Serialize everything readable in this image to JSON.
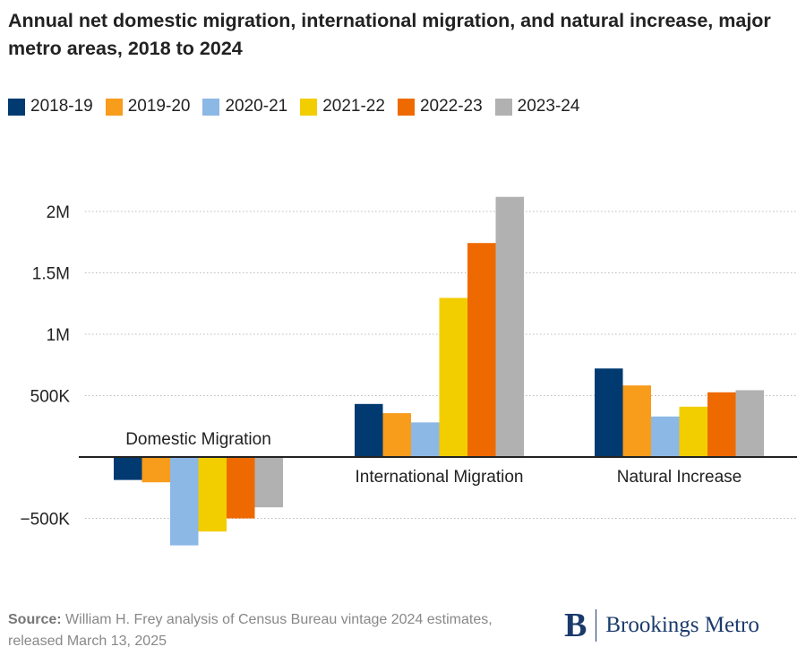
{
  "title": "Annual net domestic migration, international migration, and natural increase, major metro areas, 2018 to 2024",
  "source_label": "Source:",
  "source_text": "William H. Frey analysis of Census Bureau vintage 2024 estimates, released March 13, 2025",
  "logo": {
    "letter": "B",
    "text": "Brookings Metro"
  },
  "chart_data": {
    "type": "bar",
    "title": "Annual net domestic migration, international migration, and natural increase, major metro areas, 2018 to 2024",
    "categories": [
      "Domestic Migration",
      "International Migration",
      "Natural Increase"
    ],
    "series": [
      {
        "name": "2018-19",
        "color": "#003a70",
        "values": [
          -187000,
          432000,
          721000
        ]
      },
      {
        "name": "2019-20",
        "color": "#f89c1c",
        "values": [
          -206000,
          357000,
          583000
        ]
      },
      {
        "name": "2020-21",
        "color": "#8cb8e6",
        "values": [
          -720000,
          282000,
          330000
        ]
      },
      {
        "name": "2021-22",
        "color": "#f2cd00",
        "values": [
          -607000,
          1296000,
          410000
        ]
      },
      {
        "name": "2022-23",
        "color": "#ee6a00",
        "values": [
          -500000,
          1743000,
          527000
        ]
      },
      {
        "name": "2023-24",
        "color": "#b1b1b1",
        "values": [
          -410000,
          2119000,
          544000
        ]
      }
    ],
    "yticks": [
      {
        "v": -500000,
        "label": "−500K"
      },
      {
        "v": 500000,
        "label": "500K"
      },
      {
        "v": 1000000,
        "label": "1M"
      },
      {
        "v": 1500000,
        "label": "1.5M"
      },
      {
        "v": 2000000,
        "label": "2M"
      }
    ],
    "ylim": [
      -750000,
      2200000
    ],
    "legend_position": "top-left",
    "grid": true
  }
}
